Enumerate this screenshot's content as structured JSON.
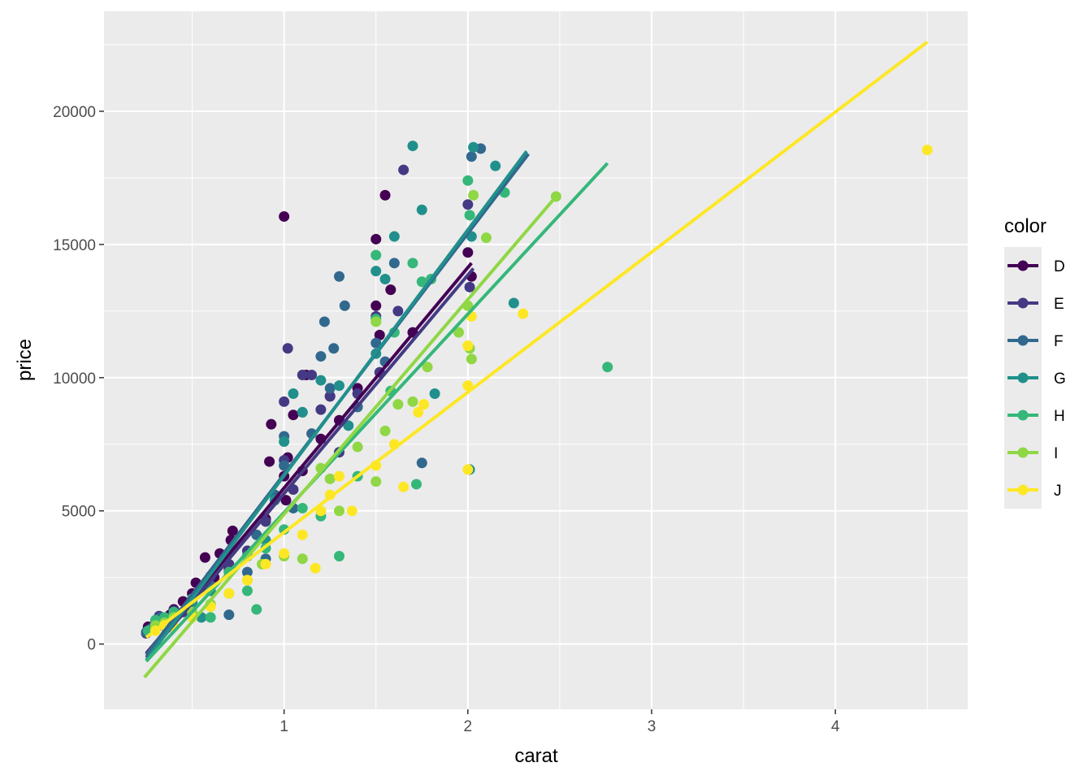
{
  "chart_data": {
    "type": "scatter",
    "xlabel": "carat",
    "ylabel": "price",
    "xlim": [
      0.02,
      4.72
    ],
    "ylim": [
      -2450,
      23750
    ],
    "x_ticks": [
      1,
      2,
      3,
      4
    ],
    "x_tick_labels": [
      "1",
      "2",
      "3",
      "4"
    ],
    "y_ticks": [
      0,
      5000,
      10000,
      15000,
      20000
    ],
    "y_tick_labels": [
      "0",
      "5000",
      "10000",
      "15000",
      "20000"
    ],
    "grid": true,
    "legend": {
      "title": "color",
      "position": "right"
    },
    "series": [
      {
        "name": "D",
        "color": "#440154",
        "fit": [
          [
            0.25,
            -350
          ],
          [
            2.02,
            14300
          ]
        ],
        "points": [
          [
            0.26,
            650
          ],
          [
            0.3,
            560
          ],
          [
            0.32,
            780
          ],
          [
            0.35,
            900
          ],
          [
            0.38,
            1100
          ],
          [
            0.4,
            1300
          ],
          [
            0.42,
            1100
          ],
          [
            0.45,
            1600
          ],
          [
            0.5,
            1900
          ],
          [
            0.52,
            2300
          ],
          [
            0.55,
            2100
          ],
          [
            0.57,
            3250
          ],
          [
            0.62,
            2500
          ],
          [
            0.65,
            3400
          ],
          [
            0.7,
            2800
          ],
          [
            0.71,
            3900
          ],
          [
            0.72,
            4250
          ],
          [
            0.8,
            3300
          ],
          [
            0.9,
            4700
          ],
          [
            0.92,
            6850
          ],
          [
            0.93,
            8250
          ],
          [
            1.0,
            16050
          ],
          [
            1.0,
            6300
          ],
          [
            1.01,
            5400
          ],
          [
            1.02,
            7000
          ],
          [
            1.05,
            8600
          ],
          [
            1.1,
            6500
          ],
          [
            1.12,
            10100
          ],
          [
            1.2,
            7700
          ],
          [
            1.25,
            9300
          ],
          [
            1.3,
            8400
          ],
          [
            1.4,
            9600
          ],
          [
            1.5,
            12700
          ],
          [
            1.5,
            15200
          ],
          [
            1.52,
            11600
          ],
          [
            1.55,
            16850
          ],
          [
            1.58,
            13300
          ],
          [
            1.7,
            11700
          ],
          [
            2.0,
            14700
          ],
          [
            2.02,
            13800
          ]
        ]
      },
      {
        "name": "E",
        "color": "#443a83",
        "fit": [
          [
            0.25,
            -500
          ],
          [
            2.03,
            14100
          ]
        ],
        "points": [
          [
            0.25,
            400
          ],
          [
            0.28,
            550
          ],
          [
            0.3,
            700
          ],
          [
            0.32,
            1050
          ],
          [
            0.36,
            600
          ],
          [
            0.4,
            1250
          ],
          [
            0.45,
            1200
          ],
          [
            0.5,
            1600
          ],
          [
            0.55,
            2000
          ],
          [
            0.6,
            2550
          ],
          [
            0.7,
            3000
          ],
          [
            0.8,
            3500
          ],
          [
            0.9,
            4600
          ],
          [
            1.0,
            6900
          ],
          [
            1.0,
            9100
          ],
          [
            1.02,
            11100
          ],
          [
            1.05,
            5800
          ],
          [
            1.1,
            10100
          ],
          [
            1.15,
            10100
          ],
          [
            1.2,
            8800
          ],
          [
            1.25,
            9300
          ],
          [
            1.3,
            7200
          ],
          [
            1.4,
            9400
          ],
          [
            1.5,
            12300
          ],
          [
            1.52,
            10200
          ],
          [
            1.62,
            12500
          ],
          [
            1.65,
            17800
          ],
          [
            2.0,
            16500
          ],
          [
            2.01,
            13400
          ]
        ]
      },
      {
        "name": "F",
        "color": "#31688e",
        "fit": [
          [
            0.25,
            -400
          ],
          [
            2.33,
            18400
          ]
        ],
        "points": [
          [
            0.25,
            450
          ],
          [
            0.28,
            600
          ],
          [
            0.3,
            800
          ],
          [
            0.33,
            1000
          ],
          [
            0.4,
            1200
          ],
          [
            0.5,
            1700
          ],
          [
            0.6,
            2200
          ],
          [
            0.7,
            1100
          ],
          [
            0.8,
            2700
          ],
          [
            0.85,
            4100
          ],
          [
            0.9,
            3200
          ],
          [
            0.95,
            5600
          ],
          [
            1.0,
            7800
          ],
          [
            1.0,
            6700
          ],
          [
            1.05,
            5100
          ],
          [
            1.1,
            8700
          ],
          [
            1.15,
            7900
          ],
          [
            1.2,
            10800
          ],
          [
            1.22,
            12100
          ],
          [
            1.25,
            9600
          ],
          [
            1.27,
            11100
          ],
          [
            1.3,
            13800
          ],
          [
            1.33,
            12700
          ],
          [
            1.4,
            8900
          ],
          [
            1.5,
            11300
          ],
          [
            1.55,
            10600
          ],
          [
            1.6,
            14300
          ],
          [
            1.75,
            6800
          ],
          [
            2.02,
            18300
          ],
          [
            2.07,
            18600
          ]
        ]
      },
      {
        "name": "G",
        "color": "#21908c",
        "fit": [
          [
            0.25,
            -600
          ],
          [
            2.32,
            18500
          ]
        ],
        "points": [
          [
            0.26,
            500
          ],
          [
            0.3,
            700
          ],
          [
            0.35,
            900
          ],
          [
            0.4,
            1100
          ],
          [
            0.5,
            1500
          ],
          [
            0.55,
            1000
          ],
          [
            0.6,
            2000
          ],
          [
            0.7,
            2700
          ],
          [
            0.8,
            3300
          ],
          [
            0.9,
            3900
          ],
          [
            0.95,
            5400
          ],
          [
            1.0,
            7600
          ],
          [
            1.05,
            9400
          ],
          [
            1.1,
            8700
          ],
          [
            1.2,
            9900
          ],
          [
            1.3,
            9700
          ],
          [
            1.35,
            8200
          ],
          [
            1.5,
            14000
          ],
          [
            1.5,
            10900
          ],
          [
            1.55,
            13700
          ],
          [
            1.6,
            15300
          ],
          [
            1.7,
            18700
          ],
          [
            1.75,
            16300
          ],
          [
            2.03,
            18650
          ],
          [
            2.15,
            17950
          ],
          [
            2.25,
            12800
          ],
          [
            2.01,
            6550
          ],
          [
            2.02,
            15300
          ],
          [
            1.82,
            9400
          ]
        ]
      },
      {
        "name": "H",
        "color": "#35b779",
        "fit": [
          [
            0.25,
            -650
          ],
          [
            2.76,
            18050
          ]
        ],
        "points": [
          [
            0.26,
            500
          ],
          [
            0.3,
            900
          ],
          [
            0.35,
            1000
          ],
          [
            0.4,
            1200
          ],
          [
            0.5,
            1700
          ],
          [
            0.6,
            1000
          ],
          [
            0.7,
            2700
          ],
          [
            0.8,
            2000
          ],
          [
            0.85,
            1300
          ],
          [
            0.9,
            3600
          ],
          [
            1.0,
            4300
          ],
          [
            1.1,
            5100
          ],
          [
            1.2,
            4800
          ],
          [
            1.3,
            3300
          ],
          [
            1.4,
            6300
          ],
          [
            1.5,
            12200
          ],
          [
            1.5,
            14600
          ],
          [
            1.6,
            11700
          ],
          [
            1.7,
            14300
          ],
          [
            1.75,
            13600
          ],
          [
            1.8,
            13700
          ],
          [
            1.72,
            6000
          ],
          [
            2.0,
            17400
          ],
          [
            2.01,
            16100
          ],
          [
            2.2,
            16950
          ],
          [
            2.76,
            10400
          ],
          [
            1.58,
            9500
          ]
        ]
      },
      {
        "name": "I",
        "color": "#8fd744",
        "fit": [
          [
            0.24,
            -1250
          ],
          [
            2.48,
            16800
          ]
        ],
        "points": [
          [
            0.3,
            700
          ],
          [
            0.35,
            800
          ],
          [
            0.4,
            1000
          ],
          [
            0.5,
            1200
          ],
          [
            0.6,
            1500
          ],
          [
            0.7,
            1900
          ],
          [
            0.8,
            2400
          ],
          [
            0.88,
            3000
          ],
          [
            1.0,
            3300
          ],
          [
            1.1,
            3200
          ],
          [
            1.2,
            6600
          ],
          [
            1.25,
            6200
          ],
          [
            1.3,
            5000
          ],
          [
            1.4,
            7400
          ],
          [
            1.5,
            6100
          ],
          [
            1.5,
            12100
          ],
          [
            1.55,
            8000
          ],
          [
            1.62,
            9000
          ],
          [
            1.7,
            9100
          ],
          [
            1.78,
            10400
          ],
          [
            2.0,
            12700
          ],
          [
            2.01,
            11100
          ],
          [
            2.02,
            10700
          ],
          [
            2.03,
            16850
          ],
          [
            2.1,
            15250
          ],
          [
            2.48,
            16800
          ],
          [
            1.95,
            11700
          ]
        ]
      },
      {
        "name": "J",
        "color": "#fde725",
        "fit": [
          [
            0.25,
            250
          ],
          [
            4.5,
            22600
          ]
        ],
        "points": [
          [
            0.3,
            500
          ],
          [
            0.35,
            700
          ],
          [
            0.4,
            650
          ],
          [
            0.5,
            1000
          ],
          [
            0.6,
            1400
          ],
          [
            0.7,
            1900
          ],
          [
            0.8,
            2400
          ],
          [
            0.9,
            3000
          ],
          [
            1.0,
            3400
          ],
          [
            1.1,
            4100
          ],
          [
            1.17,
            2850
          ],
          [
            1.2,
            5000
          ],
          [
            1.25,
            5600
          ],
          [
            1.3,
            6300
          ],
          [
            1.37,
            5000
          ],
          [
            1.5,
            6700
          ],
          [
            1.65,
            5900
          ],
          [
            1.6,
            7500
          ],
          [
            1.73,
            8700
          ],
          [
            1.76,
            9000
          ],
          [
            2.0,
            9700
          ],
          [
            2.0,
            11200
          ],
          [
            2.02,
            12300
          ],
          [
            2.3,
            12400
          ],
          [
            4.5,
            18550
          ],
          [
            2.0,
            6550
          ]
        ]
      }
    ]
  }
}
